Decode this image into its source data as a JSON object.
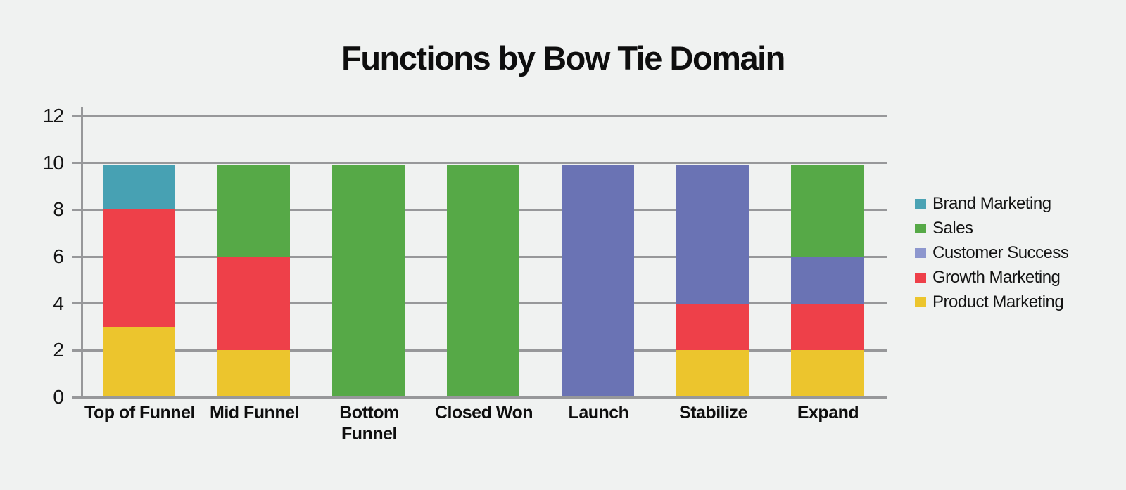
{
  "title": "Functions by Bow Tie Domain",
  "palette": {
    "background": "#f0f2f1",
    "grid": "#97989a",
    "text": "#141414"
  },
  "chart_data": {
    "type": "bar",
    "stacked": true,
    "title": "Functions by Bow Tie Domain",
    "categories": [
      "Top of Funnel",
      "Mid Funnel",
      "Bottom Funnel",
      "Closed Won",
      "Launch",
      "Stabilize",
      "Expand"
    ],
    "series": [
      {
        "name": "Product Marketing",
        "color": "#ecc52d",
        "values": [
          3,
          2,
          0,
          0,
          0,
          2,
          2
        ]
      },
      {
        "name": "Growth Marketing",
        "color": "#ee4049",
        "values": [
          5,
          4,
          0,
          0,
          0,
          2,
          2
        ]
      },
      {
        "name": "Customer Success",
        "color": "#6a73b4",
        "values": [
          0,
          0,
          0,
          0,
          10,
          6,
          2
        ]
      },
      {
        "name": "Sales",
        "color": "#56a947",
        "values": [
          0,
          4,
          10,
          10,
          0,
          0,
          4
        ]
      },
      {
        "name": "Brand Marketing",
        "color": "#47a1b3",
        "values": [
          2,
          0,
          0,
          0,
          0,
          0,
          0
        ]
      }
    ],
    "stack_order": "bottom-to-top",
    "legend": [
      {
        "label": "Brand Marketing",
        "color": "#4ba3b4"
      },
      {
        "label": "Sales",
        "color": "#56a947"
      },
      {
        "label": "Customer Success",
        "color": "#8d97ce"
      },
      {
        "label": "Growth Marketing",
        "color": "#ee4049"
      },
      {
        "label": "Product Marketing",
        "color": "#ecc52d"
      }
    ],
    "y_ticks": [
      0,
      2,
      4,
      6,
      8,
      10,
      12
    ],
    "ylim": [
      0,
      12
    ],
    "xlabel": "",
    "ylabel": "",
    "grid": "horizontal",
    "legend_position": "right"
  }
}
